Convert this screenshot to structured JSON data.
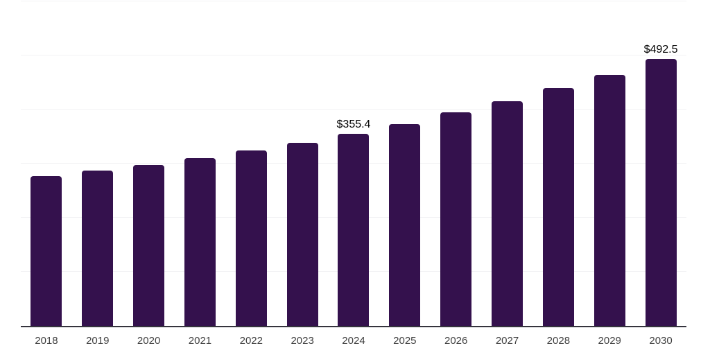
{
  "chart_data": {
    "type": "bar",
    "title": "",
    "xlabel": "",
    "ylabel": "",
    "categories": [
      "2018",
      "2019",
      "2020",
      "2021",
      "2022",
      "2023",
      "2024",
      "2025",
      "2026",
      "2027",
      "2028",
      "2029",
      "2030"
    ],
    "values": [
      276.8,
      287.4,
      297.7,
      309.5,
      324.0,
      338.6,
      355.4,
      373.1,
      394.0,
      414.8,
      439.1,
      463.9,
      492.5
    ],
    "data_labels": {
      "2024": "$355.4",
      "2030": "$492.5"
    },
    "value_prefix": "$",
    "ylim": [
      0,
      600
    ],
    "gridline_interval": 100,
    "grid": "horizontal-only",
    "legend": "none",
    "y_tick_labels": "none",
    "colors": {
      "bar": "#34114d",
      "axis": "#35343d",
      "gridline": "#f2f2f4",
      "x_tick_label": "#3f3f3f",
      "data_label": "#000000"
    }
  }
}
